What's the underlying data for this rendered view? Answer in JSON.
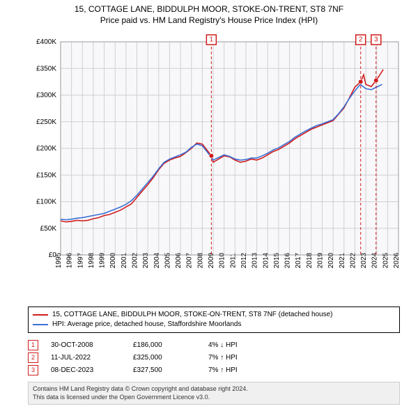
{
  "title_line1": "15, COTTAGE LANE, BIDDULPH MOOR, STOKE-ON-TRENT, ST8 7NF",
  "title_line2": "Price paid vs. HM Land Registry's House Price Index (HPI)",
  "chart": {
    "background_color": "#f8f8fa",
    "grid_color": "#d0d0d4",
    "axis_color": "#000000",
    "y": {
      "min": 0,
      "max": 400000,
      "step": 50000,
      "labels": [
        "£0",
        "£50K",
        "£100K",
        "£150K",
        "£200K",
        "£250K",
        "£300K",
        "£350K",
        "£400K"
      ]
    },
    "x": {
      "min": 1995,
      "max": 2026,
      "step": 1,
      "labels": [
        "1995",
        "1996",
        "1997",
        "1998",
        "1999",
        "2000",
        "2001",
        "2002",
        "2003",
        "2004",
        "2005",
        "2006",
        "2007",
        "2008",
        "2009",
        "2010",
        "2011",
        "2012",
        "2013",
        "2014",
        "2015",
        "2016",
        "2017",
        "2018",
        "2019",
        "2020",
        "2021",
        "2022",
        "2023",
        "2024",
        "2025",
        "2026"
      ]
    },
    "series": [
      {
        "name": "price_paid",
        "color": "#d01c1c",
        "line_width": 1.6,
        "data": [
          [
            1995,
            64000
          ],
          [
            1995.5,
            62000
          ],
          [
            1996,
            63000
          ],
          [
            1996.5,
            65000
          ],
          [
            1997,
            64000
          ],
          [
            1997.5,
            65000
          ],
          [
            1998,
            68000
          ],
          [
            1998.5,
            70000
          ],
          [
            1999,
            74000
          ],
          [
            1999.5,
            76000
          ],
          [
            2000,
            80000
          ],
          [
            2000.5,
            84000
          ],
          [
            2001,
            90000
          ],
          [
            2001.5,
            96000
          ],
          [
            2002,
            108000
          ],
          [
            2002.5,
            120000
          ],
          [
            2003,
            132000
          ],
          [
            2003.5,
            145000
          ],
          [
            2004,
            160000
          ],
          [
            2004.5,
            172000
          ],
          [
            2005,
            178000
          ],
          [
            2005.5,
            182000
          ],
          [
            2006,
            185000
          ],
          [
            2006.5,
            192000
          ],
          [
            2007,
            200000
          ],
          [
            2007.5,
            210000
          ],
          [
            2008,
            208000
          ],
          [
            2008.5,
            195000
          ],
          [
            2008.83,
            186000
          ],
          [
            2009,
            174000
          ],
          [
            2009.5,
            180000
          ],
          [
            2010,
            186000
          ],
          [
            2010.5,
            184000
          ],
          [
            2011,
            178000
          ],
          [
            2011.5,
            174000
          ],
          [
            2012,
            176000
          ],
          [
            2012.5,
            180000
          ],
          [
            2013,
            178000
          ],
          [
            2013.5,
            182000
          ],
          [
            2014,
            188000
          ],
          [
            2014.5,
            194000
          ],
          [
            2015,
            198000
          ],
          [
            2015.5,
            204000
          ],
          [
            2016,
            210000
          ],
          [
            2016.5,
            218000
          ],
          [
            2017,
            224000
          ],
          [
            2017.5,
            230000
          ],
          [
            2018,
            236000
          ],
          [
            2018.5,
            240000
          ],
          [
            2019,
            244000
          ],
          [
            2019.5,
            248000
          ],
          [
            2020,
            252000
          ],
          [
            2020.5,
            264000
          ],
          [
            2021,
            276000
          ],
          [
            2021.5,
            295000
          ],
          [
            2022,
            315000
          ],
          [
            2022.53,
            325000
          ],
          [
            2022.8,
            338000
          ],
          [
            2023,
            320000
          ],
          [
            2023.5,
            316000
          ],
          [
            2023.94,
            327500
          ],
          [
            2024.2,
            335000
          ],
          [
            2024.6,
            348000
          ]
        ]
      },
      {
        "name": "hpi",
        "color": "#3a6fd8",
        "line_width": 1.4,
        "data": [
          [
            1995,
            67000
          ],
          [
            1995.5,
            66000
          ],
          [
            1996,
            67000
          ],
          [
            1996.5,
            69000
          ],
          [
            1997,
            70000
          ],
          [
            1997.5,
            72000
          ],
          [
            1998,
            74000
          ],
          [
            1998.5,
            76000
          ],
          [
            1999,
            78000
          ],
          [
            1999.5,
            82000
          ],
          [
            2000,
            86000
          ],
          [
            2000.5,
            90000
          ],
          [
            2001,
            95000
          ],
          [
            2001.5,
            102000
          ],
          [
            2002,
            112000
          ],
          [
            2002.5,
            124000
          ],
          [
            2003,
            136000
          ],
          [
            2003.5,
            148000
          ],
          [
            2004,
            162000
          ],
          [
            2004.5,
            174000
          ],
          [
            2005,
            180000
          ],
          [
            2005.5,
            184000
          ],
          [
            2006,
            188000
          ],
          [
            2006.5,
            193000
          ],
          [
            2007,
            202000
          ],
          [
            2007.5,
            208000
          ],
          [
            2008,
            205000
          ],
          [
            2008.5,
            192000
          ],
          [
            2009,
            178000
          ],
          [
            2009.5,
            183000
          ],
          [
            2010,
            188000
          ],
          [
            2010.5,
            185000
          ],
          [
            2011,
            180000
          ],
          [
            2011.5,
            178000
          ],
          [
            2012,
            179000
          ],
          [
            2012.5,
            182000
          ],
          [
            2013,
            182000
          ],
          [
            2013.5,
            186000
          ],
          [
            2014,
            191000
          ],
          [
            2014.5,
            197000
          ],
          [
            2015,
            201000
          ],
          [
            2015.5,
            207000
          ],
          [
            2016,
            213000
          ],
          [
            2016.5,
            221000
          ],
          [
            2017,
            227000
          ],
          [
            2017.5,
            233000
          ],
          [
            2018,
            238000
          ],
          [
            2018.5,
            243000
          ],
          [
            2019,
            246000
          ],
          [
            2019.5,
            250000
          ],
          [
            2020,
            254000
          ],
          [
            2020.5,
            265000
          ],
          [
            2021,
            278000
          ],
          [
            2021.5,
            294000
          ],
          [
            2022,
            308000
          ],
          [
            2022.5,
            320000
          ],
          [
            2023,
            312000
          ],
          [
            2023.5,
            310000
          ],
          [
            2024,
            315000
          ],
          [
            2024.5,
            320000
          ]
        ]
      }
    ],
    "markers": [
      {
        "n": "1",
        "year": 2008.83,
        "price": 186000,
        "color": "#d01c1c"
      },
      {
        "n": "2",
        "year": 2022.53,
        "price": 325000,
        "color": "#d01c1c"
      },
      {
        "n": "3",
        "year": 2023.94,
        "price": 327500,
        "color": "#d01c1c"
      }
    ]
  },
  "legend": {
    "series1_label": "15, COTTAGE LANE, BIDDULPH MOOR, STOKE-ON-TRENT, ST8 7NF (detached house)",
    "series1_color": "#d01c1c",
    "series2_label": "HPI: Average price, detached house, Staffordshire Moorlands",
    "series2_color": "#3a6fd8"
  },
  "marker_rows": [
    {
      "n": "1",
      "color": "#d01c1c",
      "date": "30-OCT-2008",
      "price": "£186,000",
      "pct": "4% ↓ HPI"
    },
    {
      "n": "2",
      "color": "#d01c1c",
      "date": "11-JUL-2022",
      "price": "£325,000",
      "pct": "7% ↑ HPI"
    },
    {
      "n": "3",
      "color": "#d01c1c",
      "date": "08-DEC-2023",
      "price": "£327,500",
      "pct": "7% ↑ HPI"
    }
  ],
  "footer_line1": "Contains HM Land Registry data © Crown copyright and database right 2024.",
  "footer_line2": "This data is licensed under the Open Government Licence v3.0."
}
